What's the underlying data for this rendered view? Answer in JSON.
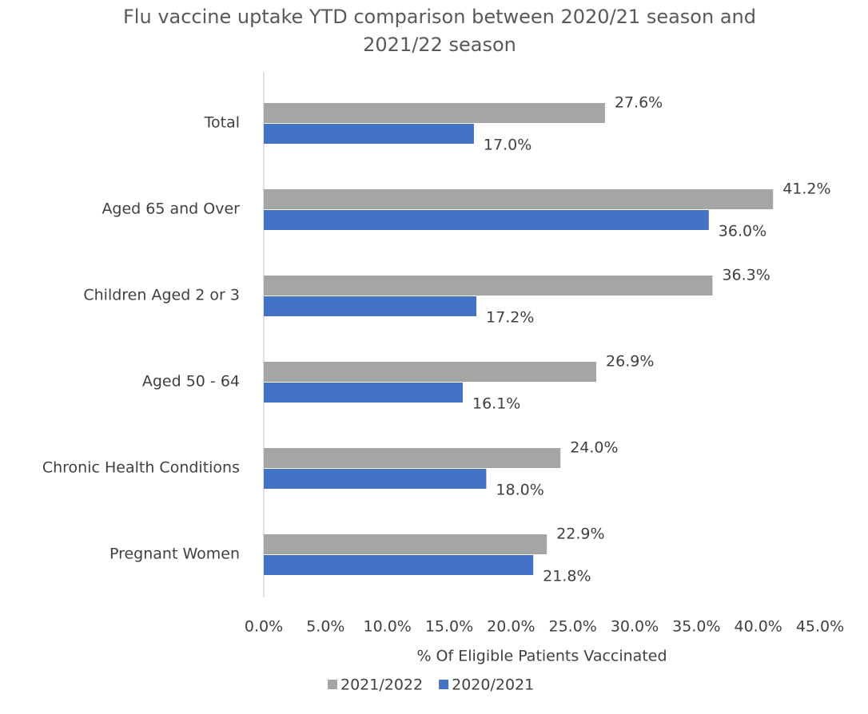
{
  "chart_data": {
    "type": "barh",
    "title": "Flu vaccine uptake YTD comparison between 2020/21 season and 2021/22 season",
    "xlabel": "% Of Eligible Patients Vaccinated",
    "categories": [
      "Total",
      "Aged 65 and Over",
      "Children Aged 2 or 3",
      "Aged 50 - 64",
      "Chronic Health Conditions",
      "Pregnant Women"
    ],
    "series": [
      {
        "name": "2021/2022",
        "color": "#a5a5a5",
        "values": [
          27.6,
          41.2,
          36.3,
          26.9,
          24.0,
          22.9
        ],
        "value_labels": [
          "27.6%",
          "41.2%",
          "36.3%",
          "26.9%",
          "24.0%",
          "22.9%"
        ]
      },
      {
        "name": "2020/2021",
        "color": "#4472c4",
        "values": [
          17.0,
          36.0,
          17.2,
          16.1,
          18.0,
          21.8
        ],
        "value_labels": [
          "17.0%",
          "36.0%",
          "17.2%",
          "16.1%",
          "18.0%",
          "21.8%"
        ]
      }
    ],
    "xlim": [
      0,
      45
    ],
    "xticks": [
      {
        "value": 0,
        "label": "0.0%"
      },
      {
        "value": 5,
        "label": "5.0%"
      },
      {
        "value": 10,
        "label": "10.0%"
      },
      {
        "value": 15,
        "label": "15.0%"
      },
      {
        "value": 20,
        "label": "20.0%"
      },
      {
        "value": 25,
        "label": "25.0%"
      },
      {
        "value": 30,
        "label": "30.0%"
      },
      {
        "value": 35,
        "label": "35.0%"
      },
      {
        "value": 40,
        "label": "40.0%"
      },
      {
        "value": 45,
        "label": "45.0%"
      }
    ],
    "grid": false,
    "legend": "bottom"
  }
}
